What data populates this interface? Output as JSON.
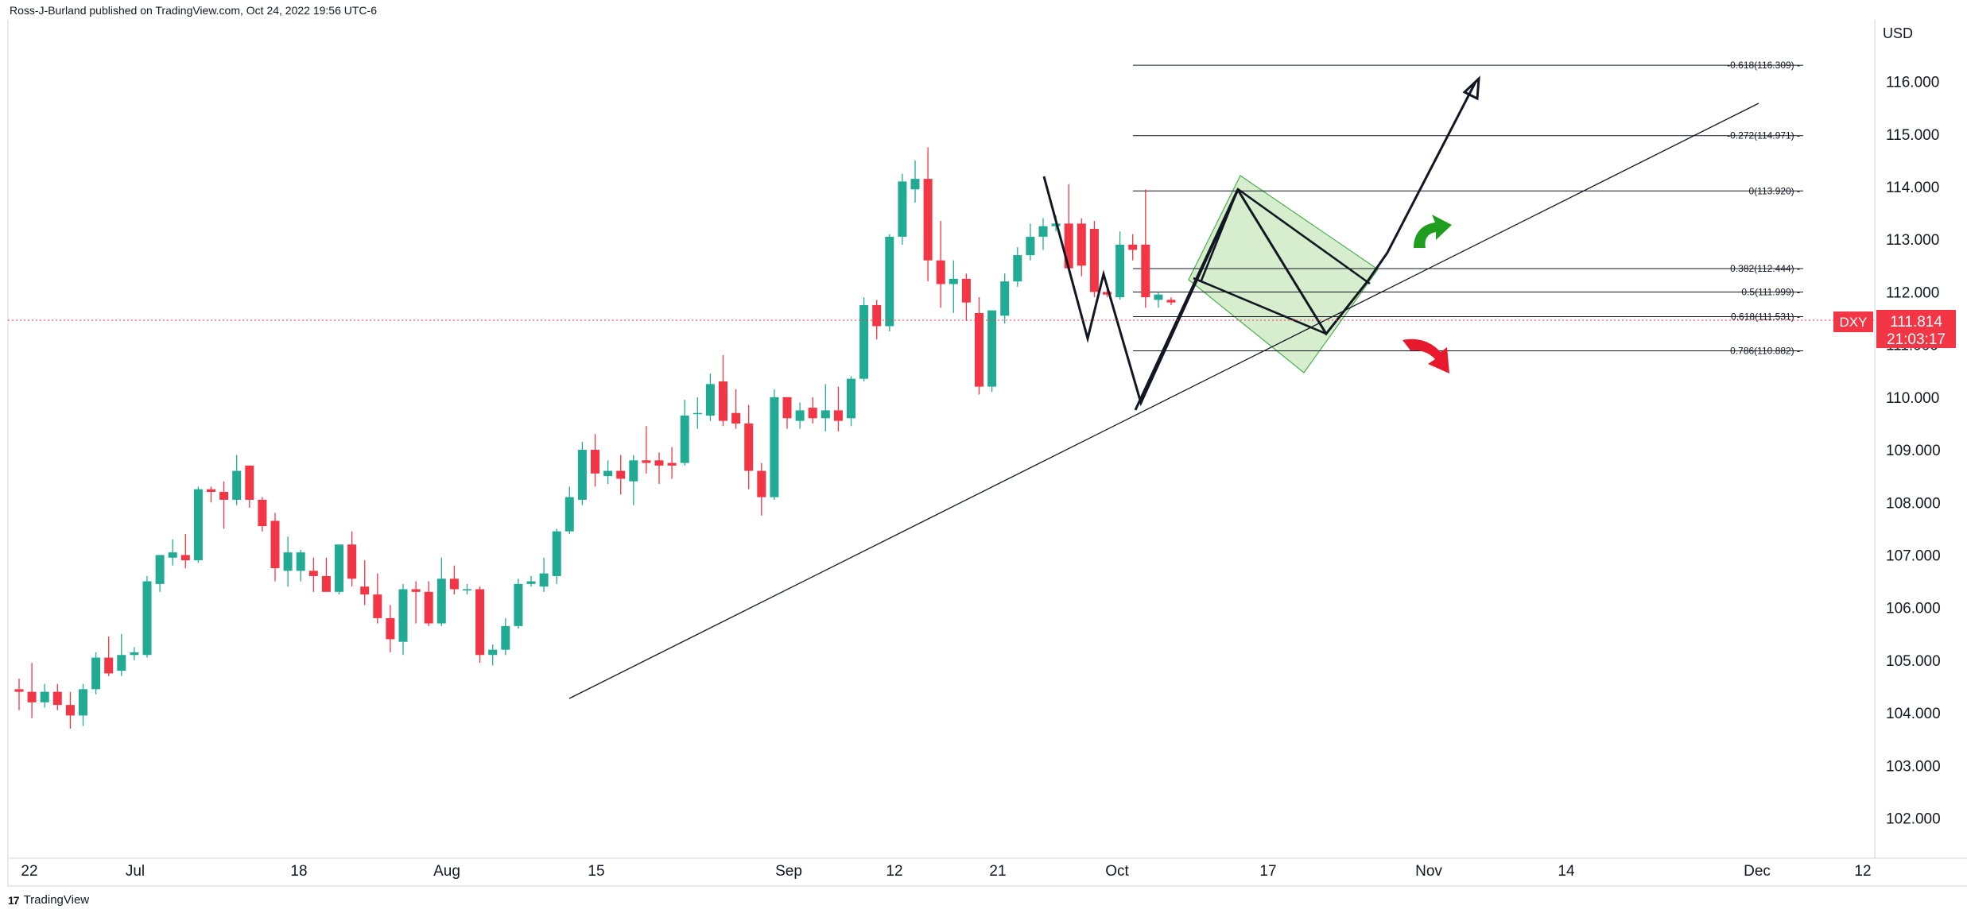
{
  "header": {
    "published": "Ross-J-Burland published on TradingView.com, Oct 24, 2022 19:56 UTC-6"
  },
  "footer": {
    "brand": "TradingView",
    "logo_text": "17"
  },
  "chart_data": {
    "type": "candlestick",
    "symbol": "DXY",
    "currency": "USD",
    "last_price": "111.814",
    "countdown": "21:03:17",
    "colors": {
      "up": "#22ab94",
      "down": "#f23645",
      "price_label": "#f23645",
      "zone_fill": "#b7e0a6",
      "zone_stroke": "#4caf50",
      "green_arrow": "#1f9d1f",
      "red_arrow": "#e8192c"
    },
    "y_range": [
      101.6,
      116.9
    ],
    "y_ticks": [
      "102.000",
      "103.000",
      "104.000",
      "105.000",
      "106.000",
      "107.000",
      "108.000",
      "109.000",
      "110.000",
      "111.000",
      "112.000",
      "113.000",
      "114.000",
      "115.000",
      "116.000"
    ],
    "x_ticks": [
      "22",
      "Jul",
      "18",
      "Aug",
      "15",
      "Sep",
      "12",
      "21",
      "Oct",
      "17",
      "Nov",
      "14",
      "Dec",
      "12"
    ],
    "candles": [
      {
        "o": 104.45,
        "h": 104.65,
        "l": 104.05,
        "c": 104.4
      },
      {
        "o": 104.4,
        "h": 104.95,
        "l": 103.9,
        "c": 104.2
      },
      {
        "o": 104.2,
        "h": 104.55,
        "l": 104.1,
        "c": 104.4
      },
      {
        "o": 104.4,
        "h": 104.55,
        "l": 104.05,
        "c": 104.15
      },
      {
        "o": 104.15,
        "h": 104.4,
        "l": 103.7,
        "c": 103.95
      },
      {
        "o": 103.95,
        "h": 104.55,
        "l": 103.75,
        "c": 104.45
      },
      {
        "o": 104.45,
        "h": 105.15,
        "l": 104.35,
        "c": 105.05
      },
      {
        "o": 105.05,
        "h": 105.45,
        "l": 104.7,
        "c": 104.75
      },
      {
        "o": 104.8,
        "h": 105.5,
        "l": 104.7,
        "c": 105.1
      },
      {
        "o": 105.1,
        "h": 105.25,
        "l": 105.0,
        "c": 105.15
      },
      {
        "o": 105.1,
        "h": 106.6,
        "l": 105.05,
        "c": 106.5
      },
      {
        "o": 106.45,
        "h": 107.0,
        "l": 106.3,
        "c": 107.0
      },
      {
        "o": 106.95,
        "h": 107.3,
        "l": 106.8,
        "c": 107.05
      },
      {
        "o": 107.0,
        "h": 107.4,
        "l": 106.75,
        "c": 106.9
      },
      {
        "o": 106.9,
        "h": 108.3,
        "l": 106.85,
        "c": 108.25
      },
      {
        "o": 108.25,
        "h": 108.3,
        "l": 108.0,
        "c": 108.2
      },
      {
        "o": 108.2,
        "h": 108.4,
        "l": 107.5,
        "c": 108.05
      },
      {
        "o": 108.05,
        "h": 108.9,
        "l": 107.95,
        "c": 108.6
      },
      {
        "o": 108.7,
        "h": 108.7,
        "l": 107.9,
        "c": 108.05
      },
      {
        "o": 108.05,
        "h": 108.1,
        "l": 107.45,
        "c": 107.55
      },
      {
        "o": 107.65,
        "h": 107.8,
        "l": 106.5,
        "c": 106.75
      },
      {
        "o": 106.7,
        "h": 107.35,
        "l": 106.4,
        "c": 107.05
      },
      {
        "o": 106.7,
        "h": 107.1,
        "l": 106.5,
        "c": 107.05
      },
      {
        "o": 106.7,
        "h": 106.95,
        "l": 106.3,
        "c": 106.6
      },
      {
        "o": 106.6,
        "h": 106.95,
        "l": 106.35,
        "c": 106.3
      },
      {
        "o": 106.3,
        "h": 107.15,
        "l": 106.25,
        "c": 107.2
      },
      {
        "o": 107.2,
        "h": 107.45,
        "l": 106.4,
        "c": 106.55
      },
      {
        "o": 106.4,
        "h": 106.9,
        "l": 106.05,
        "c": 106.25
      },
      {
        "o": 106.25,
        "h": 106.65,
        "l": 105.7,
        "c": 105.8
      },
      {
        "o": 105.8,
        "h": 106.05,
        "l": 105.15,
        "c": 105.4
      },
      {
        "o": 105.35,
        "h": 106.45,
        "l": 105.1,
        "c": 106.35
      },
      {
        "o": 106.35,
        "h": 106.5,
        "l": 105.7,
        "c": 106.3
      },
      {
        "o": 106.3,
        "h": 106.5,
        "l": 105.65,
        "c": 105.7
      },
      {
        "o": 105.7,
        "h": 106.95,
        "l": 105.65,
        "c": 106.55
      },
      {
        "o": 106.55,
        "h": 106.8,
        "l": 106.25,
        "c": 106.35
      },
      {
        "o": 106.35,
        "h": 106.45,
        "l": 106.25,
        "c": 106.35
      },
      {
        "o": 106.35,
        "h": 106.4,
        "l": 104.95,
        "c": 105.1
      },
      {
        "o": 105.1,
        "h": 105.3,
        "l": 104.9,
        "c": 105.2
      },
      {
        "o": 105.2,
        "h": 105.8,
        "l": 105.1,
        "c": 105.65
      },
      {
        "o": 105.65,
        "h": 106.55,
        "l": 105.6,
        "c": 106.45
      },
      {
        "o": 106.45,
        "h": 106.6,
        "l": 106.4,
        "c": 106.5
      },
      {
        "o": 106.4,
        "h": 106.95,
        "l": 106.3,
        "c": 106.65
      },
      {
        "o": 106.6,
        "h": 107.5,
        "l": 106.45,
        "c": 107.45
      },
      {
        "o": 107.45,
        "h": 108.3,
        "l": 107.4,
        "c": 108.1
      },
      {
        "o": 108.05,
        "h": 109.15,
        "l": 107.95,
        "c": 109.0
      },
      {
        "o": 109.0,
        "h": 109.3,
        "l": 108.3,
        "c": 108.55
      },
      {
        "o": 108.5,
        "h": 108.8,
        "l": 108.35,
        "c": 108.6
      },
      {
        "o": 108.6,
        "h": 108.9,
        "l": 108.15,
        "c": 108.45
      },
      {
        "o": 108.4,
        "h": 108.9,
        "l": 107.95,
        "c": 108.8
      },
      {
        "o": 108.8,
        "h": 109.45,
        "l": 108.55,
        "c": 108.75
      },
      {
        "o": 108.8,
        "h": 108.95,
        "l": 108.35,
        "c": 108.7
      },
      {
        "o": 108.75,
        "h": 109.05,
        "l": 108.45,
        "c": 108.7
      },
      {
        "o": 108.75,
        "h": 109.95,
        "l": 108.7,
        "c": 109.65
      },
      {
        "o": 109.7,
        "h": 110.0,
        "l": 109.4,
        "c": 109.7
      },
      {
        "o": 109.65,
        "h": 110.45,
        "l": 109.55,
        "c": 110.25
      },
      {
        "o": 110.3,
        "h": 110.8,
        "l": 109.45,
        "c": 109.55
      },
      {
        "o": 109.7,
        "h": 110.15,
        "l": 109.4,
        "c": 109.5
      },
      {
        "o": 109.5,
        "h": 109.85,
        "l": 108.25,
        "c": 108.6
      },
      {
        "o": 108.6,
        "h": 108.75,
        "l": 107.75,
        "c": 108.1
      },
      {
        "o": 108.1,
        "h": 110.15,
        "l": 108.05,
        "c": 110.0
      },
      {
        "o": 110.0,
        "h": 110.0,
        "l": 109.4,
        "c": 109.6
      },
      {
        "o": 109.55,
        "h": 109.9,
        "l": 109.4,
        "c": 109.75
      },
      {
        "o": 109.8,
        "h": 110.0,
        "l": 109.5,
        "c": 109.6
      },
      {
        "o": 109.6,
        "h": 110.25,
        "l": 109.35,
        "c": 109.75
      },
      {
        "o": 109.75,
        "h": 110.2,
        "l": 109.35,
        "c": 109.55
      },
      {
        "o": 109.6,
        "h": 110.4,
        "l": 109.45,
        "c": 110.35
      },
      {
        "o": 110.35,
        "h": 111.9,
        "l": 110.3,
        "c": 111.75
      },
      {
        "o": 111.75,
        "h": 111.85,
        "l": 111.1,
        "c": 111.35
      },
      {
        "o": 111.35,
        "h": 113.1,
        "l": 111.25,
        "c": 113.05
      },
      {
        "o": 113.05,
        "h": 114.25,
        "l": 112.9,
        "c": 114.1
      },
      {
        "o": 113.95,
        "h": 114.5,
        "l": 113.7,
        "c": 114.15
      },
      {
        "o": 114.15,
        "h": 114.75,
        "l": 112.2,
        "c": 112.6
      },
      {
        "o": 112.6,
        "h": 113.35,
        "l": 111.7,
        "c": 112.15
      },
      {
        "o": 112.15,
        "h": 112.6,
        "l": 111.6,
        "c": 112.25
      },
      {
        "o": 112.25,
        "h": 112.35,
        "l": 111.45,
        "c": 111.8
      },
      {
        "o": 111.6,
        "h": 111.9,
        "l": 110.05,
        "c": 110.2
      },
      {
        "o": 110.2,
        "h": 111.5,
        "l": 110.1,
        "c": 111.65
      },
      {
        "o": 111.55,
        "h": 112.35,
        "l": 111.4,
        "c": 112.2
      },
      {
        "o": 112.2,
        "h": 112.85,
        "l": 112.1,
        "c": 112.7
      },
      {
        "o": 112.7,
        "h": 113.3,
        "l": 112.6,
        "c": 113.05
      },
      {
        "o": 113.05,
        "h": 113.4,
        "l": 112.8,
        "c": 113.25
      },
      {
        "o": 113.25,
        "h": 113.45,
        "l": 113.15,
        "c": 113.3
      },
      {
        "o": 113.3,
        "h": 114.05,
        "l": 112.5,
        "c": 112.45
      },
      {
        "o": 113.3,
        "h": 113.4,
        "l": 112.3,
        "c": 112.5
      },
      {
        "o": 113.2,
        "h": 113.35,
        "l": 111.9,
        "c": 112.0
      },
      {
        "o": 112.0,
        "h": 112.1,
        "l": 111.9,
        "c": 111.95
      },
      {
        "o": 111.9,
        "h": 113.15,
        "l": 111.85,
        "c": 112.9
      },
      {
        "o": 112.9,
        "h": 113.1,
        "l": 112.6,
        "c": 112.8
      },
      {
        "o": 112.9,
        "h": 113.95,
        "l": 111.7,
        "c": 111.9
      },
      {
        "o": 111.85,
        "h": 112.0,
        "l": 111.7,
        "c": 111.95
      },
      {
        "o": 111.85,
        "h": 111.9,
        "l": 111.75,
        "c": 111.8
      }
    ],
    "fib_levels": [
      {
        "label": "-0.618(116.309)",
        "price": 116.309
      },
      {
        "label": "-0.272(114.971)",
        "price": 114.971
      },
      {
        "label": "0(113.920)",
        "price": 113.92
      },
      {
        "label": "0.382(112.444)",
        "price": 112.444
      },
      {
        "label": "0.5(111.999)",
        "price": 111.999
      },
      {
        "label": "0.618(111.531)",
        "price": 111.531
      },
      {
        "label": "0.786(110.882)",
        "price": 110.882
      }
    ],
    "title": "",
    "xlabel": "",
    "ylabel": "",
    "grid": false
  }
}
